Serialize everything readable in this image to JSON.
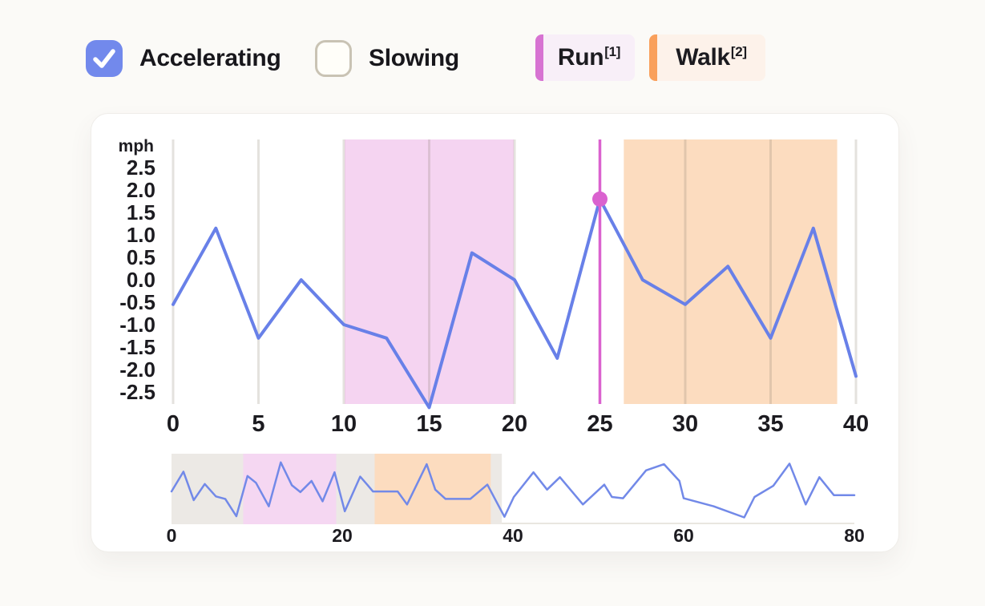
{
  "controls": {
    "accelerating": {
      "label": "Accelerating",
      "checked": true
    },
    "slowing": {
      "label": "Slowing",
      "checked": false
    },
    "run_legend": {
      "label": "Run",
      "sup": "[1]"
    },
    "walk_legend": {
      "label": "Walk",
      "sup": "[2]"
    }
  },
  "colors": {
    "checkbox_blue": "#7289ec",
    "line_blue": "#6880e8",
    "overview_line_blue": "#7289e8",
    "marker_magenta": "#da62cf",
    "run_accent": "#d773d2",
    "walk_accent": "#f9a05c",
    "run_region": "#f5d4f1",
    "walk_region": "#fcdcbf",
    "selection_gray": "#ece9e5",
    "gridline": "rgba(134,122,106,0.22)",
    "baseline": "#e9e6e0",
    "text_dark": "#1c1b20"
  },
  "chart_data": [
    {
      "type": "line",
      "title": "",
      "ylabel": "mph",
      "xlabel": "",
      "xlim": [
        0,
        40
      ],
      "ylim": [
        -2.86,
        3.13
      ],
      "grid": "vertical",
      "x_ticks": [
        0,
        5,
        10,
        15,
        20,
        25,
        30,
        35,
        40
      ],
      "y_ticks": [
        "2.5",
        "2.0",
        "1.5",
        "1.0",
        "0.5",
        "0.0",
        "-0.5",
        "-1.0",
        "-1.5",
        "-2.0",
        "-2.5"
      ],
      "points": [
        [
          0,
          -0.55
        ],
        [
          2.5,
          1.15
        ],
        [
          5,
          -1.3
        ],
        [
          7.5,
          0
        ],
        [
          10,
          -1
        ],
        [
          12.5,
          -1.3
        ],
        [
          15,
          -2.85
        ],
        [
          17.5,
          0.6
        ],
        [
          20,
          0
        ],
        [
          22.5,
          -1.75
        ],
        [
          25,
          1.8
        ],
        [
          27.5,
          0
        ],
        [
          30,
          -0.55
        ],
        [
          32.5,
          0.3
        ],
        [
          35,
          -1.3
        ],
        [
          37.5,
          1.15
        ],
        [
          40,
          -2.15
        ]
      ],
      "regions": [
        {
          "name": "run",
          "x0": 10.05,
          "x1": 19.95,
          "color": "#f5d4f1"
        },
        {
          "name": "walk",
          "x0": 26.4,
          "x1": 38.9,
          "color": "#fcdcbf"
        }
      ],
      "marker": {
        "x": 25,
        "v": 1.8
      }
    },
    {
      "type": "line",
      "role": "overview-brush",
      "xlim": [
        0,
        80
      ],
      "ylim": [
        -2.55,
        3.15
      ],
      "x_ticks": [
        0,
        20,
        40,
        60,
        80
      ],
      "points": [
        [
          0,
          0.1
        ],
        [
          1.4,
          1.7
        ],
        [
          2.6,
          -0.6
        ],
        [
          3.9,
          0.7
        ],
        [
          5.2,
          -0.3
        ],
        [
          6.3,
          -0.5
        ],
        [
          7.6,
          -1.9
        ],
        [
          8.9,
          1.35
        ],
        [
          9.9,
          0.8
        ],
        [
          11.4,
          -1.1
        ],
        [
          12.8,
          2.45
        ],
        [
          14.1,
          0.6
        ],
        [
          15.1,
          0.05
        ],
        [
          16.4,
          0.95
        ],
        [
          17.7,
          -0.7
        ],
        [
          19.1,
          1.65
        ],
        [
          20.3,
          -1.5
        ],
        [
          22.1,
          1.3
        ],
        [
          23,
          0.6
        ],
        [
          23.6,
          0.1
        ],
        [
          26.5,
          0.1
        ],
        [
          27.6,
          -0.95
        ],
        [
          29.9,
          2.3
        ],
        [
          30.9,
          0.25
        ],
        [
          32.1,
          -0.5
        ],
        [
          35,
          -0.5
        ],
        [
          37,
          0.65
        ],
        [
          39,
          -1.95
        ],
        [
          40.1,
          -0.35
        ],
        [
          42.4,
          1.65
        ],
        [
          44,
          0.25
        ],
        [
          45.5,
          1.25
        ],
        [
          48.2,
          -0.95
        ],
        [
          50.7,
          0.65
        ],
        [
          51.6,
          -0.35
        ],
        [
          52.9,
          -0.45
        ],
        [
          55.6,
          1.8
        ],
        [
          57.7,
          2.3
        ],
        [
          59.5,
          0.95
        ],
        [
          60,
          -0.45
        ],
        [
          63.5,
          -1.1
        ],
        [
          67.1,
          -2
        ],
        [
          68.3,
          -0.35
        ],
        [
          70.5,
          0.55
        ],
        [
          72.4,
          2.35
        ],
        [
          74.3,
          -0.95
        ],
        [
          75.9,
          1.25
        ],
        [
          77.6,
          -0.2
        ],
        [
          80,
          -0.2
        ]
      ],
      "regions": [
        {
          "name": "selection",
          "x0": 0,
          "x1": 38.7,
          "color": "#ece9e5"
        },
        {
          "name": "run",
          "x0": 8.4,
          "x1": 19.3,
          "color": "#f5d7f2"
        },
        {
          "name": "walk",
          "x0": 23.8,
          "x1": 37.4,
          "color": "#fcdcbf"
        }
      ]
    }
  ]
}
